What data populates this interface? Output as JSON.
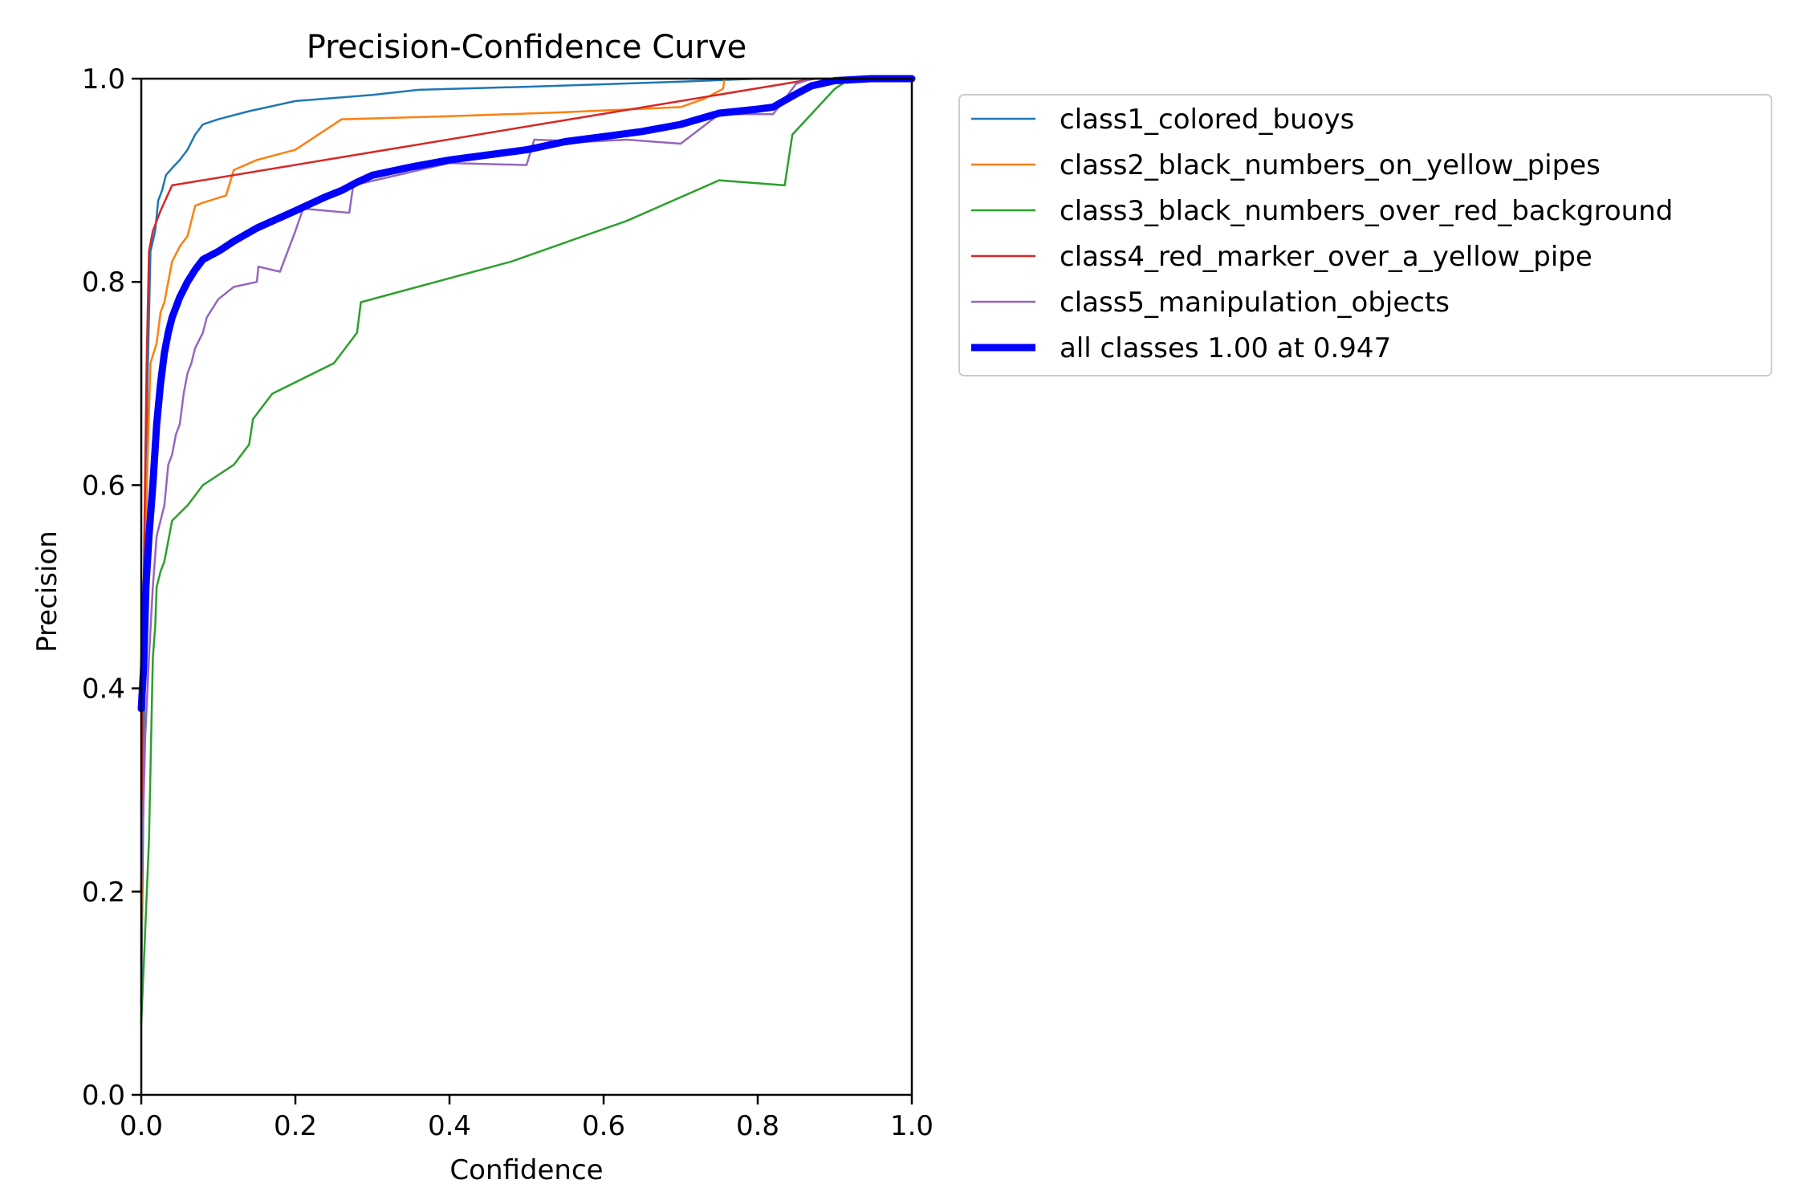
{
  "chart_data": {
    "type": "line",
    "title": "Precision-Confidence Curve",
    "xlabel": "Confidence",
    "ylabel": "Precision",
    "xlim": [
      0,
      1
    ],
    "ylim": [
      0,
      1
    ],
    "xticks": [
      "0.0",
      "0.2",
      "0.4",
      "0.6",
      "0.8",
      "1.0"
    ],
    "yticks": [
      "0.0",
      "0.2",
      "0.4",
      "0.6",
      "0.8",
      "1.0"
    ],
    "grid": false,
    "legend_position": "outside-right-top",
    "series": [
      {
        "name": "class1_colored_buoys",
        "color": "#1f77b4",
        "points": [
          [
            0,
            0.09
          ],
          [
            0.005,
            0.45
          ],
          [
            0.008,
            0.7
          ],
          [
            0.012,
            0.83
          ],
          [
            0.018,
            0.85
          ],
          [
            0.022,
            0.88
          ],
          [
            0.027,
            0.89
          ],
          [
            0.032,
            0.905
          ],
          [
            0.04,
            0.912
          ],
          [
            0.05,
            0.92
          ],
          [
            0.06,
            0.93
          ],
          [
            0.07,
            0.945
          ],
          [
            0.08,
            0.955
          ],
          [
            0.1,
            0.96
          ],
          [
            0.14,
            0.968
          ],
          [
            0.2,
            0.978
          ],
          [
            0.3,
            0.984
          ],
          [
            0.36,
            0.989
          ],
          [
            0.5,
            0.992
          ],
          [
            0.7,
            0.997
          ],
          [
            0.8,
            1.0
          ],
          [
            1.0,
            1.0
          ]
        ]
      },
      {
        "name": "class2_black_numbers_on_yellow_pipes",
        "color": "#ff7f0e",
        "points": [
          [
            0,
            0.13
          ],
          [
            0.003,
            0.45
          ],
          [
            0.008,
            0.62
          ],
          [
            0.012,
            0.72
          ],
          [
            0.02,
            0.74
          ],
          [
            0.025,
            0.77
          ],
          [
            0.03,
            0.78
          ],
          [
            0.04,
            0.82
          ],
          [
            0.05,
            0.835
          ],
          [
            0.06,
            0.845
          ],
          [
            0.07,
            0.875
          ],
          [
            0.08,
            0.878
          ],
          [
            0.11,
            0.885
          ],
          [
            0.12,
            0.91
          ],
          [
            0.15,
            0.92
          ],
          [
            0.2,
            0.93
          ],
          [
            0.23,
            0.945
          ],
          [
            0.26,
            0.96
          ],
          [
            0.4,
            0.963
          ],
          [
            0.55,
            0.967
          ],
          [
            0.7,
            0.972
          ],
          [
            0.73,
            0.98
          ],
          [
            0.755,
            0.99
          ],
          [
            0.757,
            1.0
          ],
          [
            1.0,
            1.0
          ]
        ]
      },
      {
        "name": "class3_black_numbers_over_red_background",
        "color": "#2ca02c",
        "points": [
          [
            0,
            0.07
          ],
          [
            0.01,
            0.25
          ],
          [
            0.015,
            0.43
          ],
          [
            0.018,
            0.46
          ],
          [
            0.02,
            0.5
          ],
          [
            0.025,
            0.515
          ],
          [
            0.03,
            0.525
          ],
          [
            0.035,
            0.545
          ],
          [
            0.04,
            0.565
          ],
          [
            0.06,
            0.58
          ],
          [
            0.08,
            0.6
          ],
          [
            0.12,
            0.62
          ],
          [
            0.14,
            0.64
          ],
          [
            0.145,
            0.665
          ],
          [
            0.17,
            0.69
          ],
          [
            0.25,
            0.72
          ],
          [
            0.28,
            0.75
          ],
          [
            0.285,
            0.78
          ],
          [
            0.48,
            0.82
          ],
          [
            0.63,
            0.86
          ],
          [
            0.75,
            0.9
          ],
          [
            0.835,
            0.895
          ],
          [
            0.845,
            0.945
          ],
          [
            0.9,
            0.99
          ],
          [
            0.92,
            1.0
          ],
          [
            1.0,
            1.0
          ]
        ]
      },
      {
        "name": "class4_red_marker_over_a_yellow_pipe",
        "color": "#d62728",
        "points": [
          [
            0,
            0.2
          ],
          [
            0.003,
            0.5
          ],
          [
            0.007,
            0.72
          ],
          [
            0.01,
            0.83
          ],
          [
            0.015,
            0.85
          ],
          [
            0.025,
            0.87
          ],
          [
            0.04,
            0.895
          ],
          [
            0.875,
            1.0
          ],
          [
            1.0,
            1.0
          ]
        ]
      },
      {
        "name": "class5_manipulation_objects",
        "color": "#9467bd",
        "points": [
          [
            0,
            0.2
          ],
          [
            0.005,
            0.35
          ],
          [
            0.01,
            0.43
          ],
          [
            0.015,
            0.5
          ],
          [
            0.02,
            0.55
          ],
          [
            0.03,
            0.58
          ],
          [
            0.035,
            0.62
          ],
          [
            0.04,
            0.63
          ],
          [
            0.045,
            0.65
          ],
          [
            0.05,
            0.66
          ],
          [
            0.055,
            0.69
          ],
          [
            0.06,
            0.71
          ],
          [
            0.065,
            0.72
          ],
          [
            0.07,
            0.735
          ],
          [
            0.08,
            0.75
          ],
          [
            0.085,
            0.765
          ],
          [
            0.1,
            0.783
          ],
          [
            0.12,
            0.795
          ],
          [
            0.15,
            0.8
          ],
          [
            0.152,
            0.815
          ],
          [
            0.18,
            0.81
          ],
          [
            0.2,
            0.85
          ],
          [
            0.21,
            0.872
          ],
          [
            0.27,
            0.868
          ],
          [
            0.275,
            0.895
          ],
          [
            0.4,
            0.917
          ],
          [
            0.5,
            0.915
          ],
          [
            0.51,
            0.94
          ],
          [
            0.58,
            0.938
          ],
          [
            0.63,
            0.94
          ],
          [
            0.7,
            0.936
          ],
          [
            0.75,
            0.965
          ],
          [
            0.82,
            0.965
          ],
          [
            0.85,
            0.995
          ],
          [
            0.87,
            1.0
          ],
          [
            1.0,
            1.0
          ]
        ]
      },
      {
        "name": "all classes 1.00 at 0.947",
        "color": "#0000ff",
        "bold": true,
        "points": [
          [
            0,
            0.38
          ],
          [
            0.003,
            0.42
          ],
          [
            0.006,
            0.5
          ],
          [
            0.01,
            0.55
          ],
          [
            0.015,
            0.6
          ],
          [
            0.02,
            0.66
          ],
          [
            0.025,
            0.7
          ],
          [
            0.03,
            0.73
          ],
          [
            0.035,
            0.75
          ],
          [
            0.04,
            0.765
          ],
          [
            0.05,
            0.785
          ],
          [
            0.06,
            0.8
          ],
          [
            0.07,
            0.812
          ],
          [
            0.08,
            0.822
          ],
          [
            0.1,
            0.83
          ],
          [
            0.12,
            0.84
          ],
          [
            0.15,
            0.853
          ],
          [
            0.2,
            0.87
          ],
          [
            0.22,
            0.877
          ],
          [
            0.24,
            0.884
          ],
          [
            0.26,
            0.89
          ],
          [
            0.28,
            0.898
          ],
          [
            0.3,
            0.905
          ],
          [
            0.35,
            0.913
          ],
          [
            0.4,
            0.92
          ],
          [
            0.45,
            0.925
          ],
          [
            0.5,
            0.93
          ],
          [
            0.55,
            0.938
          ],
          [
            0.6,
            0.943
          ],
          [
            0.65,
            0.948
          ],
          [
            0.7,
            0.955
          ],
          [
            0.75,
            0.966
          ],
          [
            0.8,
            0.97
          ],
          [
            0.82,
            0.972
          ],
          [
            0.85,
            0.985
          ],
          [
            0.87,
            0.993
          ],
          [
            0.9,
            0.998
          ],
          [
            0.947,
            1.0
          ],
          [
            1.0,
            1.0
          ]
        ]
      }
    ]
  }
}
